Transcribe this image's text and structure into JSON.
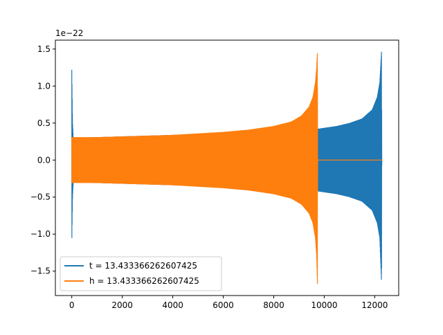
{
  "chart_data": {
    "type": "line",
    "title": "",
    "xlabel": "",
    "ylabel": "",
    "y_offset_label": "1e−22",
    "xlim": [
      -650,
      12950
    ],
    "ylim": [
      -1.83,
      1.62
    ],
    "x_ticks": [
      0,
      2000,
      4000,
      6000,
      8000,
      10000,
      12000
    ],
    "x_tick_labels": [
      "0",
      "2000",
      "4000",
      "6000",
      "8000",
      "10000",
      "12000"
    ],
    "y_ticks": [
      1.5,
      1.0,
      0.5,
      0.0,
      -0.5,
      -1.0,
      -1.5
    ],
    "y_tick_labels": [
      "1.5",
      "1.0",
      "0.5",
      "0.0",
      "−0.5",
      "−1.0",
      "−1.5"
    ],
    "grid": false,
    "legend_position": "lower-left",
    "series": [
      {
        "name": "t = 13.433366262607425",
        "color": "#1f77b4",
        "description": "initial spike near x=0, then chirp envelope growing toward merger at ~12300",
        "envelope_x": [
          0,
          30,
          60,
          2000,
          4000,
          6000,
          8000,
          9700,
          10500,
          11000,
          11500,
          11900,
          12100,
          12200,
          12270,
          12280,
          12300
        ],
        "envelope_upper": [
          1.22,
          0.5,
          0.3,
          0.32,
          0.34,
          0.36,
          0.4,
          0.42,
          0.46,
          0.5,
          0.56,
          0.68,
          0.85,
          1.05,
          1.48,
          0.0,
          0.0
        ],
        "envelope_lower": [
          -1.14,
          -0.5,
          -0.3,
          -0.32,
          -0.34,
          -0.36,
          -0.4,
          -0.42,
          -0.46,
          -0.5,
          -0.56,
          -0.68,
          -0.85,
          -1.05,
          -1.68,
          0.0,
          0.0
        ]
      },
      {
        "name": "h = 13.433366262607425",
        "color": "#ff7f0e",
        "description": "chirp from x~0 to merger at ~9730, then flat zero to ~12300",
        "envelope_x": [
          0,
          1000,
          2000,
          4000,
          6000,
          7000,
          8000,
          8700,
          9100,
          9400,
          9550,
          9650,
          9700,
          9730,
          9740,
          12300
        ],
        "envelope_upper": [
          0.31,
          0.31,
          0.32,
          0.34,
          0.38,
          0.41,
          0.46,
          0.52,
          0.6,
          0.72,
          0.85,
          1.05,
          1.25,
          1.48,
          0.0,
          0.0
        ],
        "envelope_lower": [
          -0.31,
          -0.31,
          -0.32,
          -0.34,
          -0.38,
          -0.41,
          -0.46,
          -0.52,
          -0.6,
          -0.72,
          -0.85,
          -1.05,
          -1.3,
          -1.68,
          0.0,
          0.0
        ]
      }
    ]
  }
}
